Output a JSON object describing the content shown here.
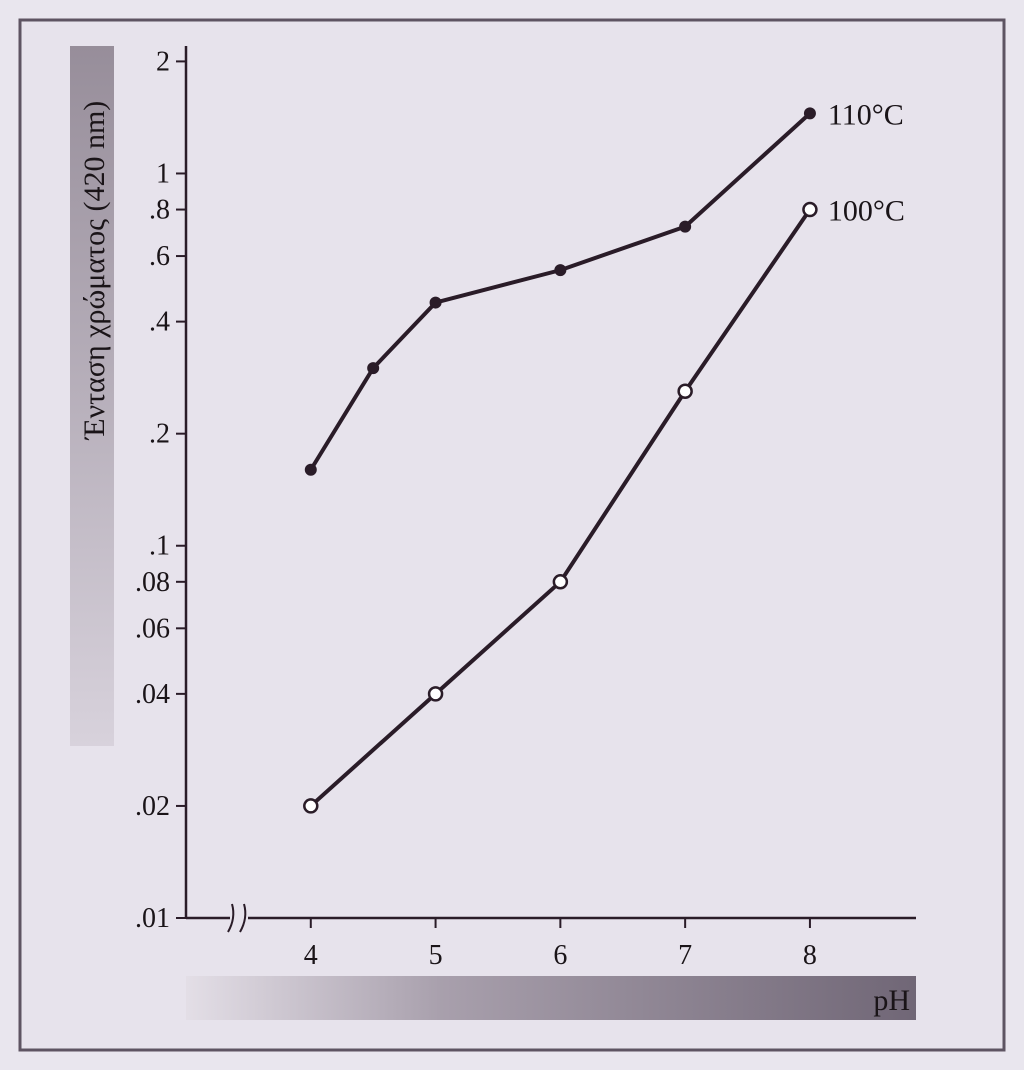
{
  "chart_data": {
    "type": "line",
    "title": "",
    "xlabel": "pH",
    "ylabel": "Ένταση χρώματος (420 nm)",
    "x_ticks": [
      "4",
      "5",
      "6",
      "7",
      "8"
    ],
    "y_ticks": [
      {
        "value": 0.01,
        "label": ".01"
      },
      {
        "value": 0.02,
        "label": ".02"
      },
      {
        "value": 0.04,
        "label": ".04"
      },
      {
        "value": 0.06,
        "label": ".06"
      },
      {
        "value": 0.08,
        "label": ".08"
      },
      {
        "value": 0.1,
        "label": ".1"
      },
      {
        "value": 0.2,
        "label": ".2"
      },
      {
        "value": 0.4,
        "label": ".4"
      },
      {
        "value": 0.6,
        "label": ".6"
      },
      {
        "value": 0.8,
        "label": ".8"
      },
      {
        "value": 1,
        "label": "1"
      },
      {
        "value": 2,
        "label": "2"
      }
    ],
    "xlim": [
      3.0,
      8.85
    ],
    "ylim": [
      0.01,
      2.2
    ],
    "y_scale": "log",
    "x_axis_break": true,
    "grid": false,
    "legend": "none",
    "series": [
      {
        "name": "110°C",
        "marker": "filled",
        "color": "#2a1c28",
        "x": [
          4,
          4.5,
          5,
          6,
          7,
          8
        ],
        "y": [
          0.16,
          0.3,
          0.45,
          0.55,
          0.72,
          1.45
        ]
      },
      {
        "name": "100°C",
        "marker": "hollow",
        "color": "#2a1c28",
        "x": [
          4,
          5,
          6,
          7,
          8
        ],
        "y": [
          0.02,
          0.04,
          0.08,
          0.26,
          0.8
        ]
      }
    ]
  },
  "colors": {
    "background": "#e9e6ee",
    "frame": "#5e5462",
    "line": "#2a1c28",
    "ylabel_band": "#8a808c",
    "xlabel_band_dark": "#6c6270",
    "xlabel_band_light": "#cfc9d3"
  }
}
